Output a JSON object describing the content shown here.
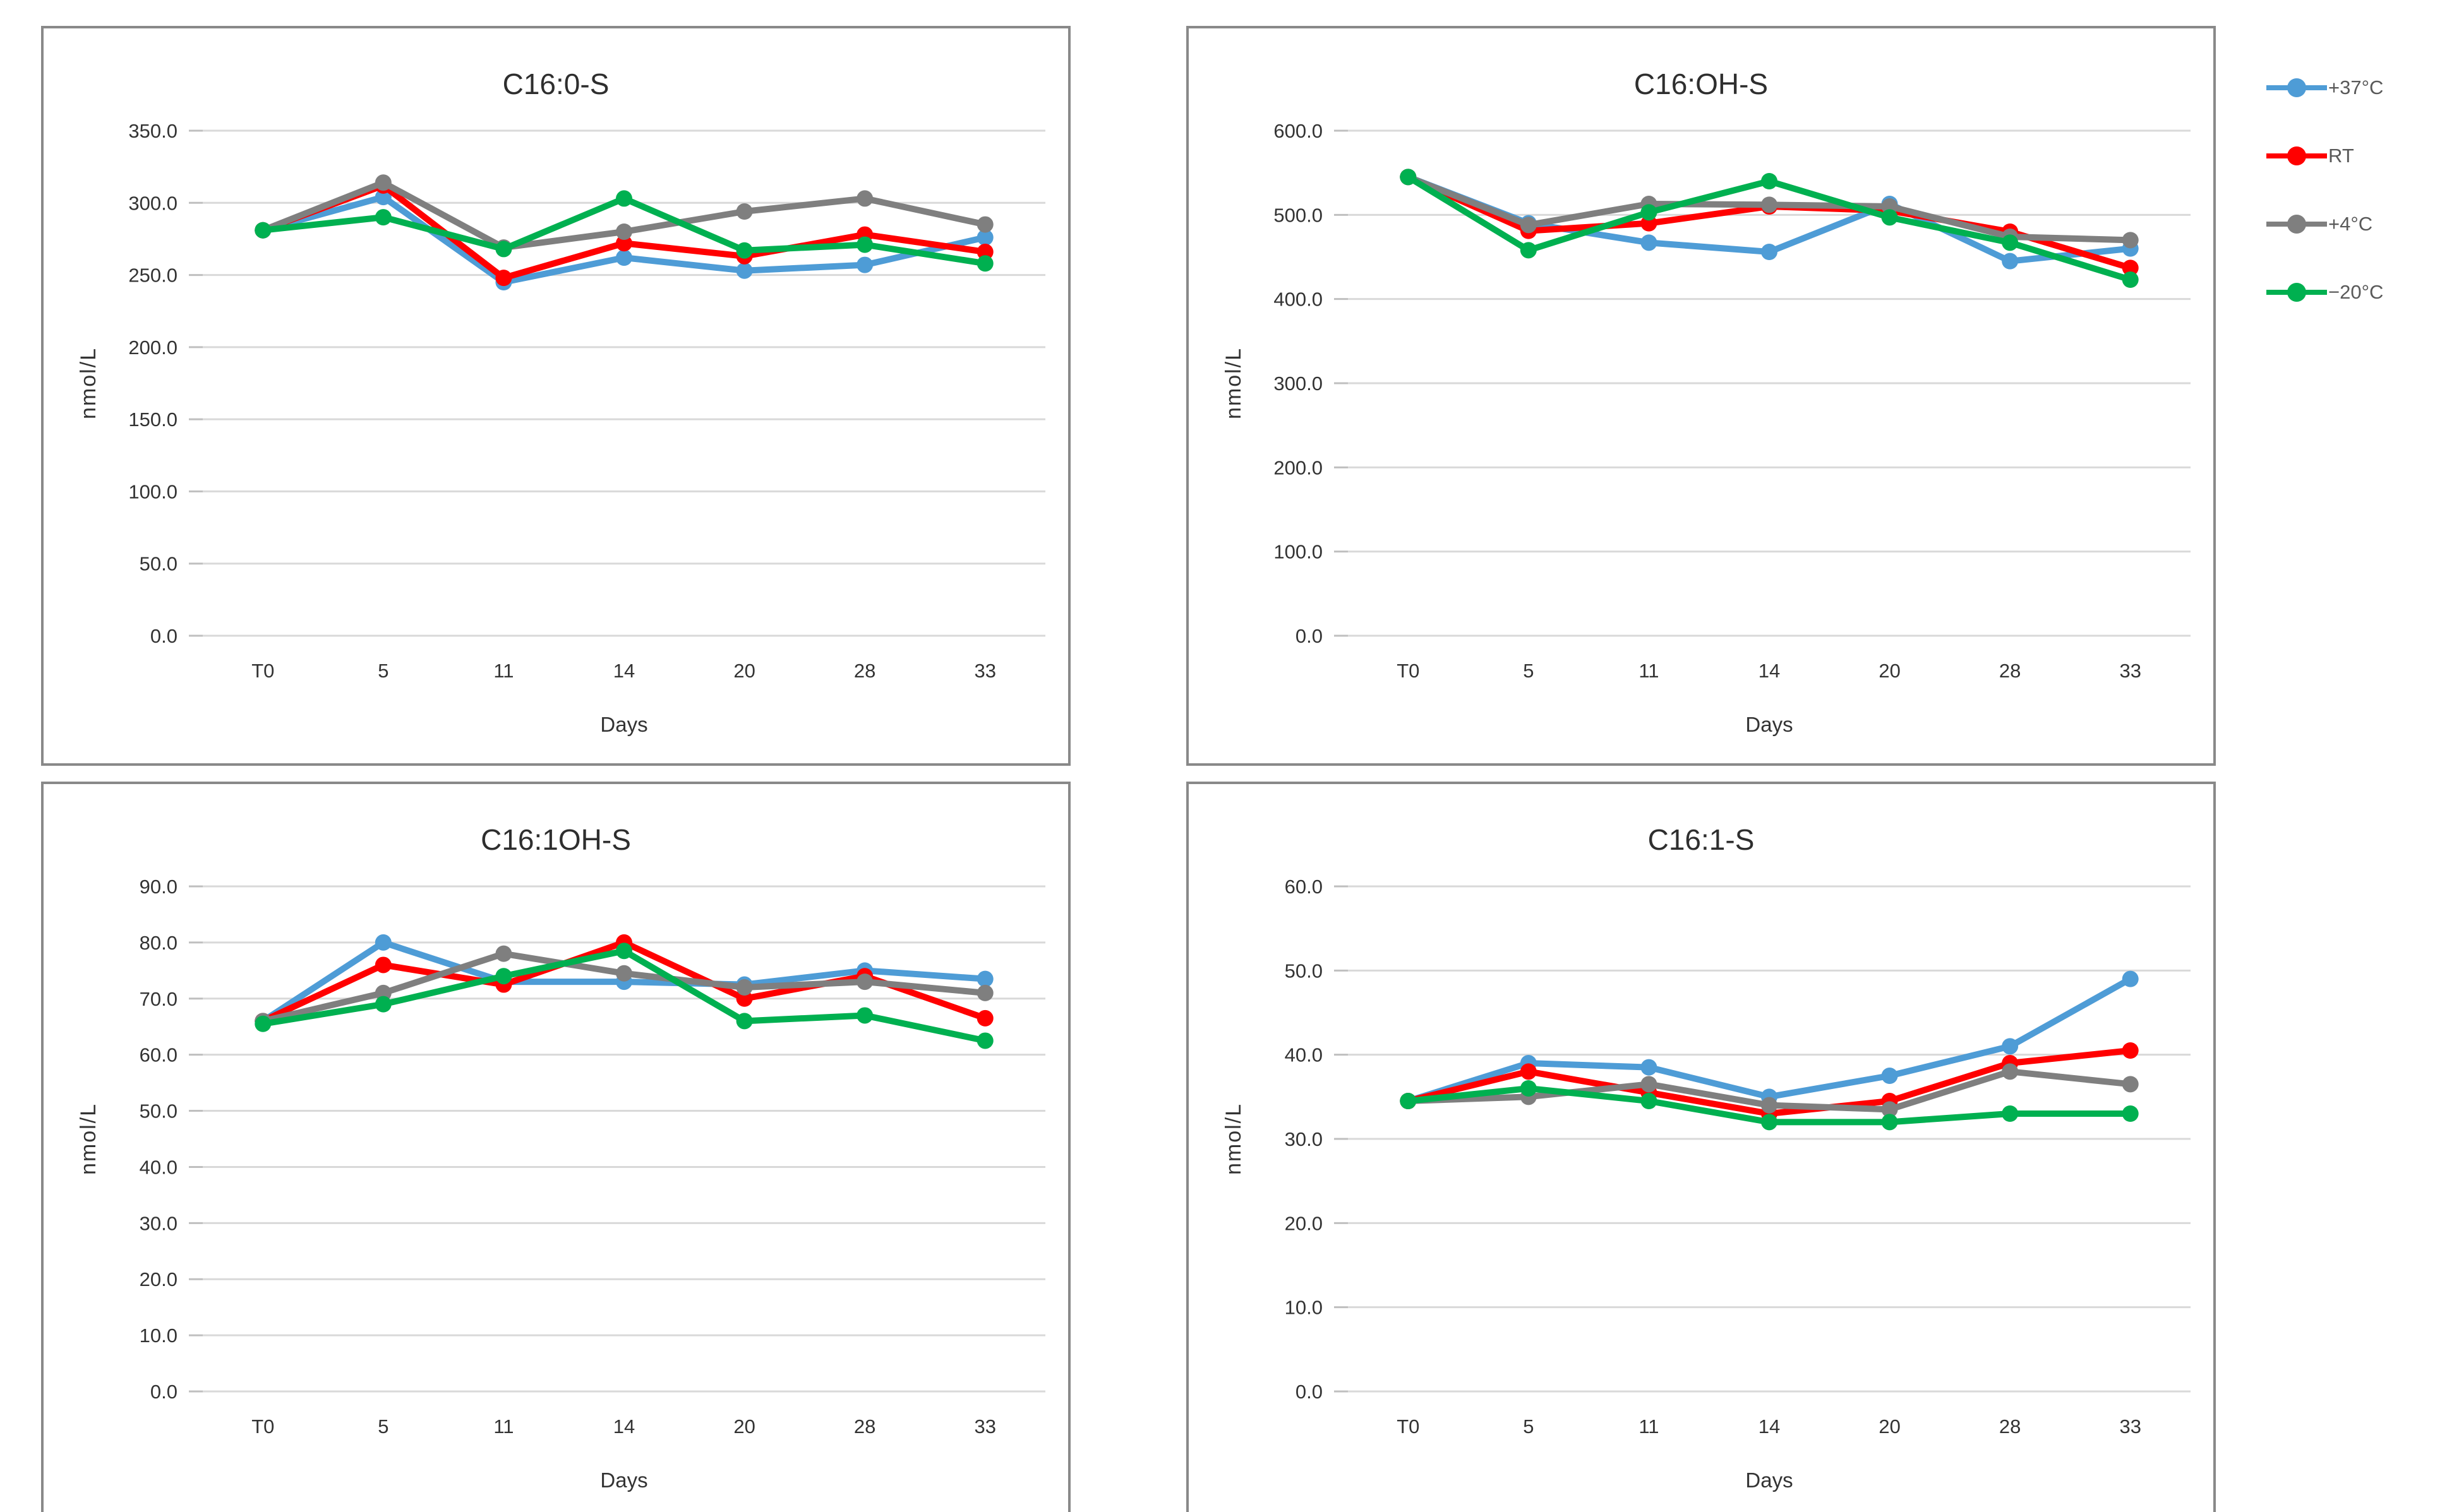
{
  "page": {
    "background_color": "#ffffff",
    "panel_border_color": "#898989",
    "gridline_color": "#d9d9d9",
    "tick_stub_color": "#bfbfbf",
    "text_color": "#333333",
    "title_color": "#2e2e2e"
  },
  "legend": {
    "items": [
      {
        "label": "+37°C",
        "color": "#4e9cd6"
      },
      {
        "label": "RT",
        "color": "#ff0000"
      },
      {
        "label": "+4°C",
        "color": "#7f7f7f"
      },
      {
        "label": "−20°C",
        "color": "#00b050"
      }
    ]
  },
  "chart_data": [
    {
      "type": "line",
      "title": "C16:0-S",
      "xlabel": "Days",
      "ylabel": "nmol/L",
      "categories": [
        "T0",
        "5",
        "11",
        "14",
        "20",
        "28",
        "33"
      ],
      "ylim": [
        0,
        350
      ],
      "ytick_step": 50,
      "ytick_decimals": 1,
      "grid": true,
      "legend_position": "outside-right",
      "series": [
        {
          "name": "+37°C",
          "color": "#4e9cd6",
          "values": [
            281,
            304,
            245,
            262,
            253,
            257,
            276
          ]
        },
        {
          "name": "RT",
          "color": "#ff0000",
          "values": [
            281,
            312,
            248,
            272,
            263,
            278,
            266
          ]
        },
        {
          "name": "+4°C",
          "color": "#7f7f7f",
          "values": [
            281,
            314,
            269,
            280,
            294,
            303,
            285
          ]
        },
        {
          "name": "−20°C",
          "color": "#00b050",
          "values": [
            281,
            290,
            268,
            303,
            267,
            271,
            258
          ]
        }
      ]
    },
    {
      "type": "line",
      "title": "C16:OH-S",
      "xlabel": "Days",
      "ylabel": "nmol/L",
      "categories": [
        "T0",
        "5",
        "11",
        "14",
        "20",
        "28",
        "33"
      ],
      "ylim": [
        0,
        600
      ],
      "ytick_step": 100,
      "ytick_decimals": 1,
      "grid": true,
      "legend_position": "outside-right",
      "series": [
        {
          "name": "+37°C",
          "color": "#4e9cd6",
          "values": [
            545,
            490,
            467,
            456,
            513,
            445,
            460
          ]
        },
        {
          "name": "RT",
          "color": "#ff0000",
          "values": [
            545,
            481,
            490,
            510,
            505,
            480,
            437
          ]
        },
        {
          "name": "+4°C",
          "color": "#7f7f7f",
          "values": [
            545,
            488,
            513,
            512,
            510,
            474,
            470
          ]
        },
        {
          "name": "−20°C",
          "color": "#00b050",
          "values": [
            545,
            458,
            503,
            540,
            497,
            467,
            423
          ]
        }
      ]
    },
    {
      "type": "line",
      "title": "C16:1OH-S",
      "xlabel": "Days",
      "ylabel": "nmol/L",
      "categories": [
        "T0",
        "5",
        "11",
        "14",
        "20",
        "28",
        "33"
      ],
      "ylim": [
        0,
        90
      ],
      "ytick_step": 10,
      "ytick_decimals": 1,
      "grid": true,
      "legend_position": "outside-right",
      "series": [
        {
          "name": "+37°C",
          "color": "#4e9cd6",
          "values": [
            66,
            80,
            73,
            73,
            72.5,
            75,
            73.5
          ]
        },
        {
          "name": "RT",
          "color": "#ff0000",
          "values": [
            66,
            76,
            72.5,
            80,
            70,
            74,
            66.5
          ]
        },
        {
          "name": "+4°C",
          "color": "#7f7f7f",
          "values": [
            66,
            71,
            78,
            74.5,
            72,
            73,
            71
          ]
        },
        {
          "name": "−20°C",
          "color": "#00b050",
          "values": [
            65.5,
            69,
            74,
            78.5,
            66,
            67,
            62.5
          ]
        }
      ]
    },
    {
      "type": "line",
      "title": "C16:1-S",
      "xlabel": "Days",
      "ylabel": "nmol/L",
      "categories": [
        "T0",
        "5",
        "11",
        "14",
        "20",
        "28",
        "33"
      ],
      "ylim": [
        0,
        60
      ],
      "ytick_step": 10,
      "ytick_decimals": 1,
      "grid": true,
      "legend_position": "outside-right",
      "series": [
        {
          "name": "+37°C",
          "color": "#4e9cd6",
          "values": [
            34.5,
            39,
            38.5,
            35,
            37.5,
            41,
            49
          ]
        },
        {
          "name": "RT",
          "color": "#ff0000",
          "values": [
            34.5,
            38,
            35.5,
            33,
            34.5,
            39,
            40.5
          ]
        },
        {
          "name": "+4°C",
          "color": "#7f7f7f",
          "values": [
            34.5,
            35,
            36.5,
            34,
            33.5,
            38,
            36.5
          ]
        },
        {
          "name": "−20°C",
          "color": "#00b050",
          "values": [
            34.5,
            36,
            34.5,
            32,
            32,
            33,
            33
          ]
        }
      ]
    }
  ]
}
